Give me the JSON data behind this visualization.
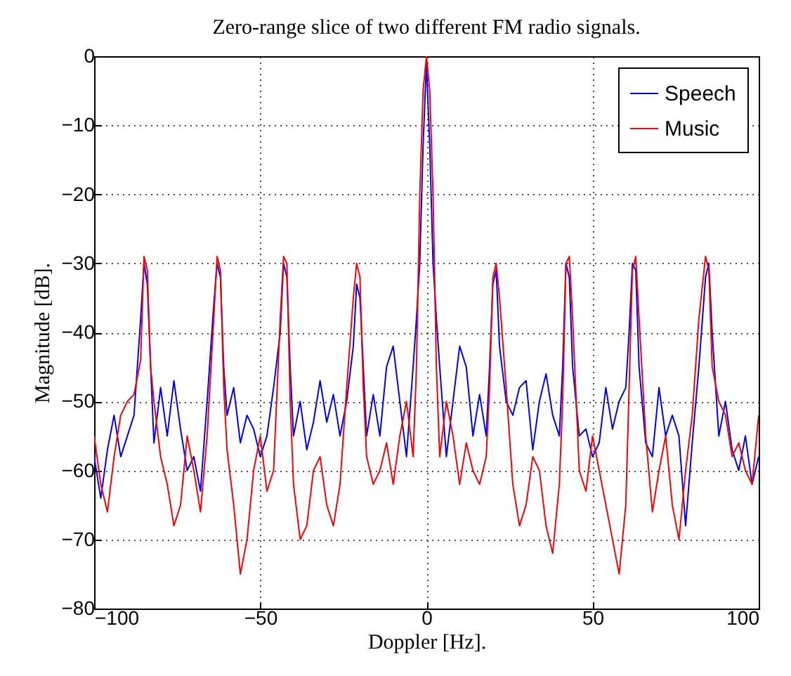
{
  "chart_data": {
    "type": "line",
    "title": "Zero-range slice of two different FM radio signals.",
    "xlabel": "Doppler [Hz].",
    "ylabel": "Magnitude [dB].",
    "x": [
      -100,
      -98,
      -96,
      -94,
      -92,
      -90,
      -88,
      -86,
      -85,
      -84,
      -83,
      -82,
      -80,
      -78,
      -76,
      -74,
      -72,
      -70,
      -68,
      -66,
      -64,
      -63,
      -62,
      -61,
      -60,
      -58,
      -56,
      -54,
      -52,
      -50,
      -48,
      -46,
      -44,
      -43,
      -42,
      -41,
      -40,
      -38,
      -36,
      -34,
      -32,
      -30,
      -28,
      -26,
      -24,
      -22,
      -21,
      -20,
      -19,
      -18,
      -16,
      -14,
      -12,
      -10,
      -8,
      -6,
      -4,
      -3,
      -2,
      -1,
      0,
      1,
      2,
      3,
      4,
      6,
      8,
      10,
      12,
      14,
      16,
      18,
      19,
      20,
      21,
      22,
      24,
      26,
      28,
      30,
      32,
      34,
      36,
      38,
      40,
      41,
      42,
      43,
      44,
      46,
      48,
      50,
      52,
      54,
      56,
      58,
      60,
      61,
      62,
      63,
      64,
      66,
      68,
      70,
      72,
      74,
      76,
      78,
      80,
      82,
      84,
      85,
      86,
      88,
      90,
      92,
      94,
      96,
      98,
      100
    ],
    "series": [
      {
        "name": "Speech",
        "color": "#0000ff",
        "values": [
          -58,
          -64,
          -57,
          -52,
          -58,
          -55,
          -52,
          -38,
          -30,
          -33,
          -45,
          -56,
          -48,
          -55,
          -47,
          -54,
          -60,
          -58,
          -63,
          -50,
          -36,
          -30,
          -32,
          -45,
          -52,
          -48,
          -56,
          -52,
          -54,
          -58,
          -55,
          -48,
          -40,
          -30,
          -32,
          -45,
          -55,
          -50,
          -57,
          -53,
          -47,
          -53,
          -49,
          -55,
          -50,
          -42,
          -33,
          -35,
          -45,
          -55,
          -49,
          -55,
          -45,
          -42,
          -50,
          -58,
          -45,
          -38,
          -30,
          -13,
          -1,
          -13,
          -30,
          -38,
          -45,
          -58,
          -50,
          -42,
          -45,
          -55,
          -49,
          -55,
          -45,
          -33,
          -31,
          -42,
          -50,
          -52,
          -48,
          -47,
          -57,
          -50,
          -46,
          -52,
          -55,
          -45,
          -30,
          -32,
          -45,
          -55,
          -54,
          -58,
          -56,
          -48,
          -54,
          -50,
          -48,
          -40,
          -30,
          -31,
          -45,
          -56,
          -58,
          -48,
          -55,
          -52,
          -55,
          -68,
          -56,
          -45,
          -32,
          -30,
          -40,
          -55,
          -50,
          -57,
          -60,
          -55,
          -62,
          -58
        ]
      },
      {
        "name": "Music",
        "color": "#ff0000",
        "values": [
          -55,
          -62,
          -66,
          -58,
          -52,
          -50,
          -49,
          -44,
          -29,
          -31,
          -45,
          -50,
          -58,
          -62,
          -68,
          -65,
          -55,
          -60,
          -66,
          -55,
          -38,
          -29,
          -31,
          -48,
          -57,
          -65,
          -75,
          -70,
          -60,
          -55,
          -63,
          -60,
          -38,
          -29,
          -30,
          -50,
          -62,
          -70,
          -68,
          -60,
          -58,
          -65,
          -68,
          -62,
          -48,
          -35,
          -30,
          -32,
          -48,
          -58,
          -62,
          -60,
          -56,
          -62,
          -55,
          -50,
          -58,
          -45,
          -20,
          -5,
          0,
          -5,
          -20,
          -45,
          -58,
          -50,
          -55,
          -62,
          -56,
          -60,
          -62,
          -58,
          -48,
          -32,
          -30,
          -35,
          -48,
          -62,
          -68,
          -65,
          -58,
          -60,
          -68,
          -72,
          -62,
          -50,
          -30,
          -29,
          -38,
          -60,
          -63,
          -55,
          -60,
          -65,
          -70,
          -75,
          -65,
          -48,
          -31,
          -29,
          -38,
          -55,
          -66,
          -60,
          -55,
          -65,
          -70,
          -60,
          -52,
          -38,
          -29,
          -31,
          -45,
          -50,
          -52,
          -58,
          -56,
          -60,
          -62,
          -52
        ]
      }
    ],
    "xlim": [
      -100,
      100
    ],
    "xticks": [
      -100,
      -50,
      0,
      50,
      100
    ],
    "ylim": [
      -80,
      0
    ],
    "yticks": [
      -80,
      -70,
      -60,
      -50,
      -40,
      -30,
      -20,
      -10,
      0
    ],
    "grid": true,
    "legend": "top right",
    "line_style": "solid"
  }
}
